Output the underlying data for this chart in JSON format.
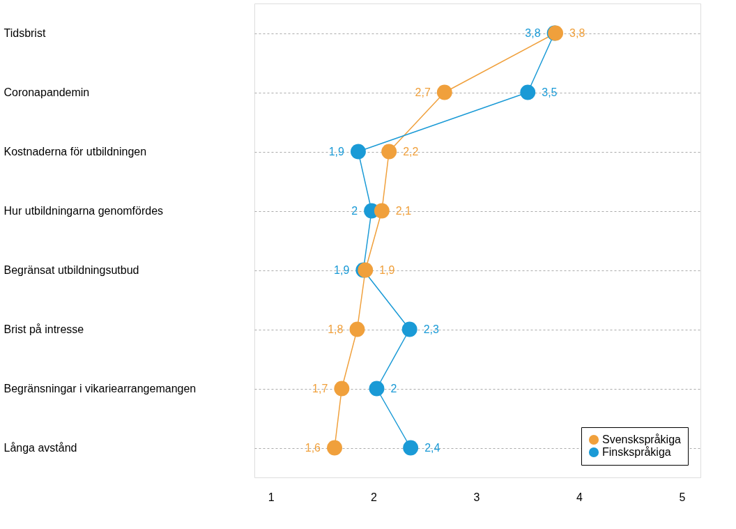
{
  "chart_data": {
    "type": "line",
    "orientation": "horizontal",
    "categories": [
      "Tidsbrist",
      "Coronapandemin",
      "Kostnaderna för utbildningen",
      "Hur utbildningarna genomfördes",
      "Begränsat utbildningsutbud",
      "Brist på intresse",
      "Begränsningar i vikariearrangemangen",
      "Långa avstånd"
    ],
    "series": [
      {
        "name": "Svenskspråkiga",
        "color": "#f0a03c",
        "values": [
          3.77,
          2.69,
          2.15,
          2.08,
          1.92,
          1.84,
          1.69,
          1.62
        ],
        "value_labels": [
          "3,8",
          "2,7",
          "2,2",
          "2,1",
          "1,9",
          "1,8",
          "1,7",
          "1,6"
        ]
      },
      {
        "name": "Finskspråkiga",
        "color": "#1a9ad6",
        "values": [
          3.76,
          3.5,
          1.85,
          1.98,
          1.9,
          2.35,
          2.03,
          2.36
        ],
        "value_labels": [
          "3,8",
          "3,5",
          "1,9",
          "2",
          "1,9",
          "2,3",
          "2",
          "2,4"
        ]
      }
    ],
    "xlim": [
      0.84,
      5.18
    ],
    "xticks": [
      1,
      2,
      3,
      4,
      5
    ],
    "grid": "y",
    "legend": "bottom right",
    "marker": "circle",
    "line_style": "solid"
  }
}
